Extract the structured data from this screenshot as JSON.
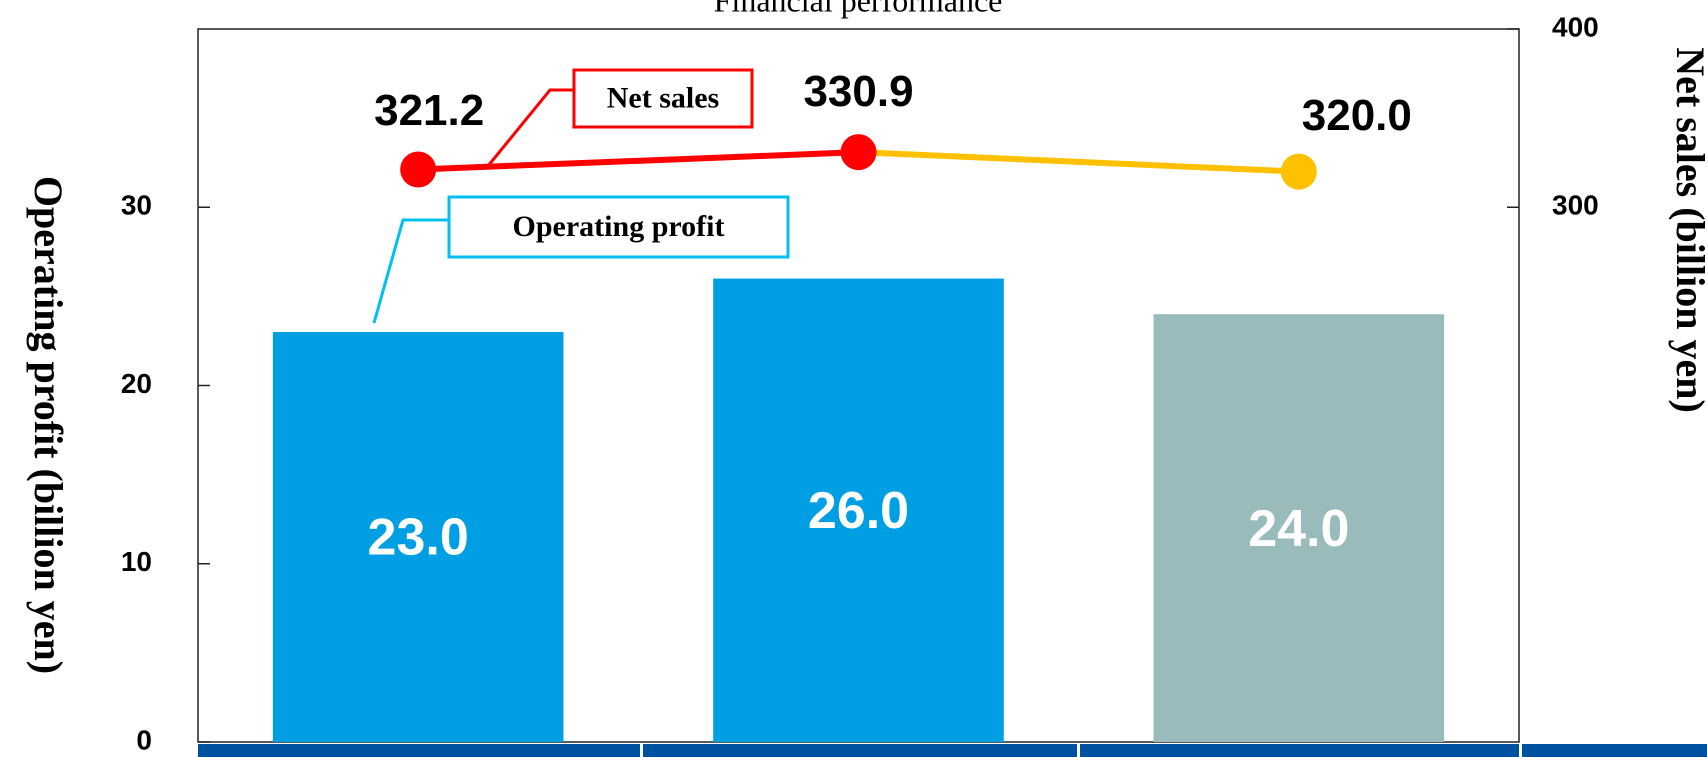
{
  "chart_data": {
    "type": "bar",
    "title": "Financial performance",
    "y_label": "Operating profit (billion yen)",
    "y2_label": "Net sales (billion yen)",
    "categories": [
      null,
      null,
      null
    ],
    "ylim": [
      0,
      40
    ],
    "yticks": [
      0,
      10,
      20,
      30
    ],
    "y2lim": [
      0,
      400
    ],
    "y2ticks": [
      300,
      400
    ],
    "series": [
      {
        "name": "Operating profit",
        "type": "bar",
        "axis": "y",
        "colors": [
          "#009fe3",
          "#009fe3",
          "#99bbbb"
        ],
        "values": [
          23.0,
          26.0,
          24.0
        ],
        "value_labels": [
          "23.0",
          "26.0",
          "24.0"
        ]
      },
      {
        "name": "Net sales",
        "type": "line",
        "axis": "y2",
        "colors": [
          "#ff0000",
          "#ff0000",
          "#ffc000"
        ],
        "values": [
          321.2,
          330.9,
          320.0
        ],
        "value_labels": [
          "321.2",
          "330.9",
          "320.0"
        ]
      }
    ]
  }
}
